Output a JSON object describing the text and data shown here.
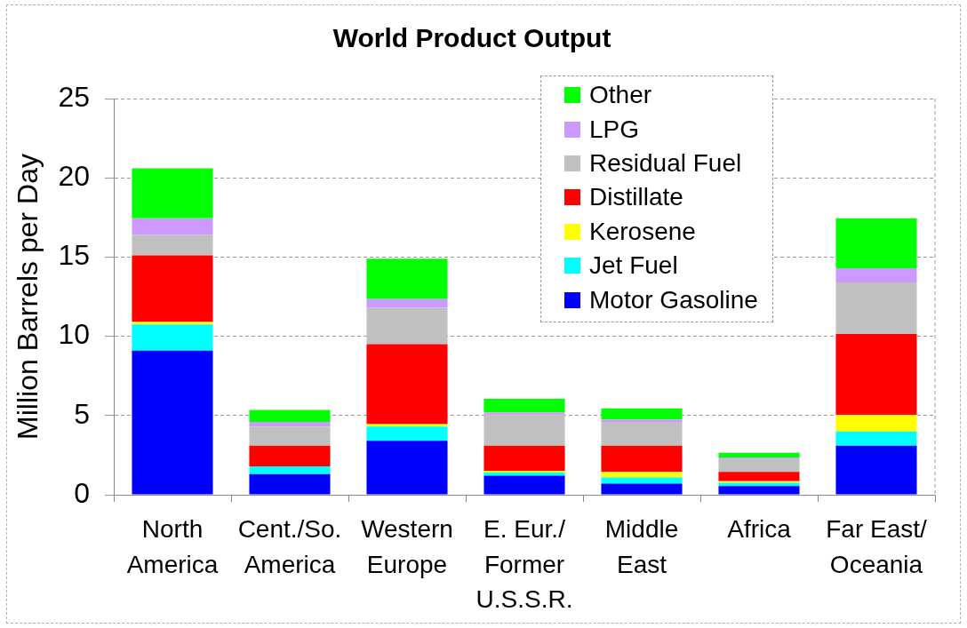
{
  "chart_data": {
    "type": "bar",
    "title": "World Product Output",
    "ylabel": "Million Barrels per Day",
    "categories": [
      "North America",
      "Cent./So. America",
      "Western Europe",
      "E. Eur./Former U.S.S.R.",
      "Middle East",
      "Africa",
      "Far East/Oceania"
    ],
    "series": [
      {
        "name": "Motor Gasoline",
        "color": "#0000ff",
        "values": [
          9.1,
          1.3,
          3.4,
          1.2,
          0.7,
          0.55,
          3.1
        ]
      },
      {
        "name": "Jet Fuel",
        "color": "#00ffff",
        "values": [
          1.65,
          0.5,
          0.9,
          0.2,
          0.4,
          0.2,
          0.9
        ]
      },
      {
        "name": "Kerosene",
        "color": "#ffff00",
        "values": [
          0.15,
          0,
          0.15,
          0.1,
          0.35,
          0.1,
          1.05
        ]
      },
      {
        "name": "Distillate",
        "color": "#ff0000",
        "values": [
          4.2,
          1.3,
          5.05,
          1.6,
          1.65,
          0.6,
          5.1
        ]
      },
      {
        "name": "Residual Fuel",
        "color": "#c0c0c0",
        "values": [
          1.3,
          1.2,
          2.3,
          2.0,
          1.5,
          0.8,
          3.25
        ]
      },
      {
        "name": "LPG",
        "color": "#cc99ff",
        "values": [
          1.05,
          0.3,
          0.55,
          0.1,
          0.15,
          0.1,
          0.9
        ]
      },
      {
        "name": "Other",
        "color": "#00ff00",
        "values": [
          3.15,
          0.75,
          2.55,
          0.85,
          0.7,
          0.3,
          3.15
        ]
      }
    ],
    "stacked": true,
    "ylim": [
      0,
      25
    ],
    "yticks": [
      0,
      5,
      10,
      15,
      20,
      25
    ],
    "grid": "y",
    "legend": "top right"
  }
}
